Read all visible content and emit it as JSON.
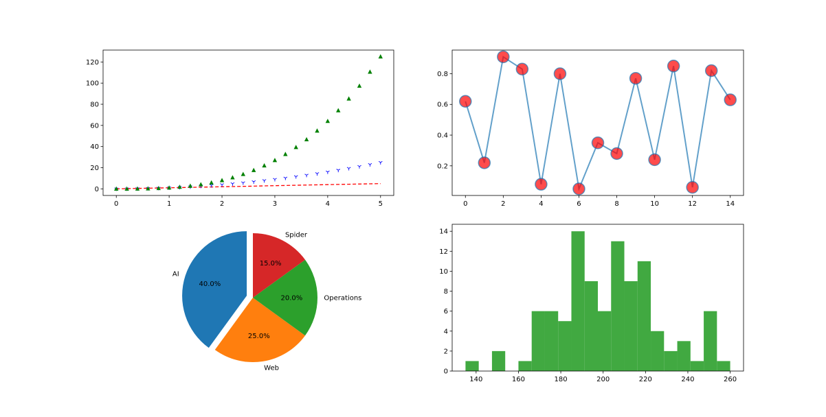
{
  "chart_data": [
    {
      "type": "scatter",
      "title": "",
      "xlabel": "",
      "ylabel": "",
      "xlim": [
        -0.25,
        5.25
      ],
      "ylim": [
        -6.25,
        131.25
      ],
      "xticks": [
        0,
        1,
        2,
        3,
        4,
        5
      ],
      "yticks": [
        0,
        20,
        40,
        60,
        80,
        100,
        120
      ],
      "grid": false,
      "x": [
        0.0,
        0.2,
        0.4,
        0.6,
        0.8,
        1.0,
        1.2,
        1.4,
        1.6,
        1.8,
        2.0,
        2.2,
        2.4,
        2.6,
        2.8,
        3.0,
        3.2,
        3.4,
        3.6,
        3.8,
        4.0,
        4.2,
        4.4,
        4.6,
        4.8,
        5.0
      ],
      "series": [
        {
          "style": "dashed-line",
          "color": "#ff0000",
          "values": [
            0.0,
            0.2,
            0.4,
            0.6,
            0.8,
            1.0,
            1.2,
            1.4,
            1.6,
            1.8,
            2.0,
            2.2,
            2.4,
            2.6,
            2.8,
            3.0,
            3.2,
            3.4,
            3.6,
            3.8,
            4.0,
            4.2,
            4.4,
            4.6,
            4.8,
            5.0
          ]
        },
        {
          "style": "tri-down-marker",
          "color": "#0000ff",
          "values": [
            0.0,
            0.04,
            0.16,
            0.36,
            0.64,
            1.0,
            1.44,
            1.96,
            2.56,
            3.24,
            4.0,
            4.84,
            5.76,
            6.76,
            7.84,
            9.0,
            10.24,
            11.56,
            12.96,
            14.44,
            16.0,
            17.64,
            19.36,
            21.16,
            23.04,
            25.0
          ]
        },
        {
          "style": "triangle-up-marker",
          "color": "#008000",
          "values": [
            0.0,
            0.008,
            0.064,
            0.216,
            0.512,
            1.0,
            1.728,
            2.744,
            4.096,
            5.832,
            8.0,
            10.648,
            13.824,
            17.576,
            21.952,
            27.0,
            32.768,
            39.304,
            46.656,
            54.872,
            64.0,
            74.088,
            85.184,
            97.336,
            110.592,
            125.0
          ]
        }
      ]
    },
    {
      "type": "line",
      "title": "",
      "xlabel": "",
      "ylabel": "",
      "xlim": [
        -0.7,
        14.7
      ],
      "ylim": [
        0.007,
        0.954
      ],
      "xticks": [
        0,
        2,
        4,
        6,
        8,
        10,
        12,
        14
      ],
      "yticks": [
        0.2,
        0.4,
        0.6,
        0.8
      ],
      "grid": false,
      "line_color": "#1f77b4",
      "marker_color": "#ff0000",
      "x": [
        0,
        1,
        2,
        3,
        4,
        5,
        6,
        7,
        8,
        9,
        10,
        11,
        12,
        13,
        14
      ],
      "values": [
        0.62,
        0.22,
        0.91,
        0.83,
        0.08,
        0.8,
        0.05,
        0.35,
        0.28,
        0.77,
        0.24,
        0.85,
        0.06,
        0.82,
        0.63
      ]
    },
    {
      "type": "pie",
      "labels": [
        "AI",
        "Web",
        "Operations",
        "Spider"
      ],
      "values": [
        40,
        25,
        20,
        15
      ],
      "autopct": [
        "40.0%",
        "25.0%",
        "20.0%",
        "15.0%"
      ],
      "colors": [
        "#1f77b4",
        "#ff7f0e",
        "#2ca02c",
        "#d62728"
      ],
      "explode": [
        0.1,
        0,
        0,
        0
      ],
      "startangle": 90
    },
    {
      "type": "bar",
      "title": "",
      "xlabel": "",
      "ylabel": "",
      "color": "#2ca02c",
      "xlim": [
        128.7,
        266.3
      ],
      "ylim": [
        0,
        14.7
      ],
      "xticks": [
        140,
        160,
        180,
        200,
        220,
        240,
        260
      ],
      "yticks": [
        0,
        2,
        4,
        6,
        8,
        10,
        12,
        14
      ],
      "bin_start": 135,
      "bin_width": 6.25,
      "values": [
        1,
        0,
        2,
        0,
        1,
        6,
        6,
        5,
        14,
        9,
        6,
        13,
        9,
        11,
        4,
        2,
        3,
        1,
        6,
        1
      ]
    }
  ]
}
